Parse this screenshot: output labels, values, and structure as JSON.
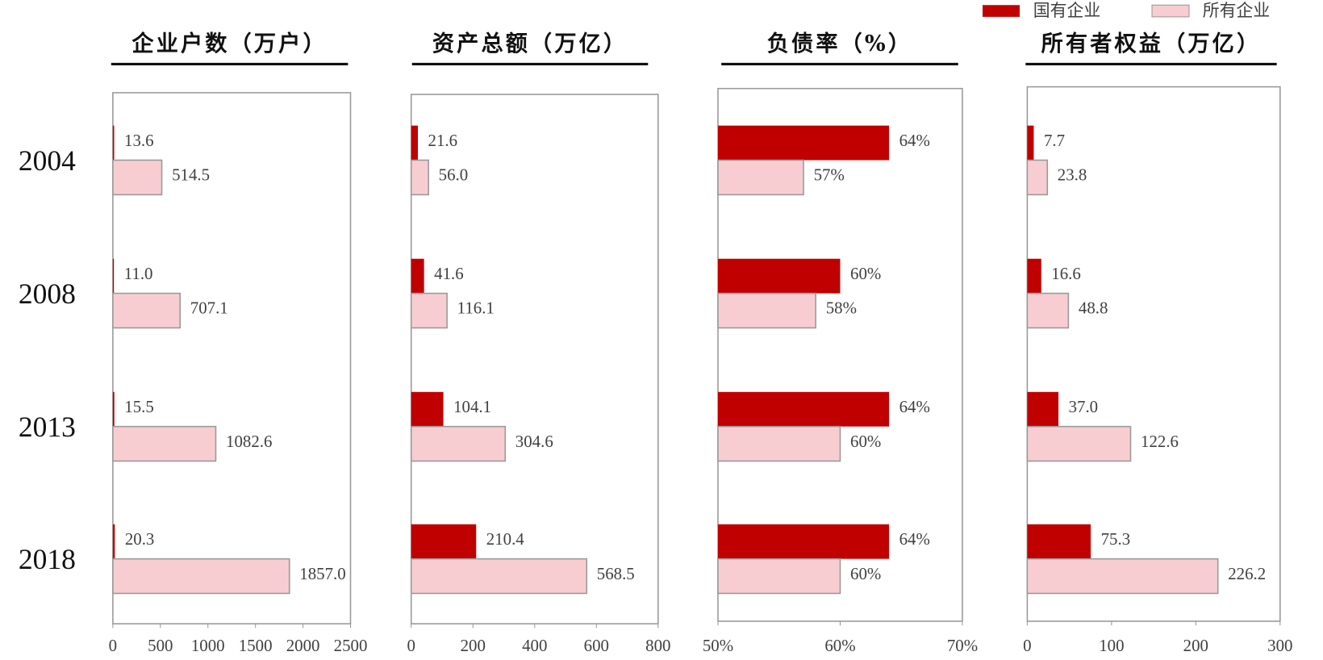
{
  "chart_data": [
    {
      "type": "bar",
      "title": "企业户数（万户）",
      "categories": [
        "2004",
        "2008",
        "2013",
        "2018"
      ],
      "series": [
        {
          "name": "国有企业",
          "color": "#c00000",
          "values": [
            13.6,
            11.0,
            15.5,
            20.3
          ],
          "value_labels": [
            "13.6",
            "11.0",
            "15.5",
            "20.3"
          ]
        },
        {
          "name": "所有企业",
          "color": "#f8cdd2",
          "values": [
            514.5,
            707.1,
            1082.6,
            1857.0
          ],
          "value_labels": [
            "514.5",
            "707.1",
            "1082.6",
            "1857.0"
          ]
        }
      ],
      "xlim": [
        0,
        2500
      ],
      "xticks": [
        0,
        500,
        1000,
        1500,
        2000,
        2500
      ]
    },
    {
      "type": "bar",
      "title": "资产总额（万亿）",
      "series": [
        {
          "color": "#c00000",
          "values": [
            21.6,
            41.6,
            104.1,
            210.4
          ],
          "value_labels": [
            "21.6",
            "41.6",
            "104.1",
            "210.4"
          ]
        },
        {
          "color": "#f8cdd2",
          "values": [
            56.0,
            116.1,
            304.6,
            568.5
          ],
          "value_labels": [
            "56.0",
            "116.1",
            "304.6",
            "568.5"
          ]
        }
      ],
      "xlim": [
        0,
        800
      ],
      "xticks": [
        0,
        200,
        400,
        600,
        800
      ]
    },
    {
      "type": "bar",
      "title": "负债率（%）",
      "series": [
        {
          "color": "#c00000",
          "values": [
            64,
            60,
            64,
            64
          ],
          "value_labels": [
            "64%",
            "60%",
            "64%",
            "64%"
          ]
        },
        {
          "color": "#f8cdd2",
          "values": [
            57,
            58,
            60,
            60
          ],
          "value_labels": [
            "57%",
            "58%",
            "60%",
            "60%"
          ]
        }
      ],
      "xlim": [
        50,
        70
      ],
      "xticks": [
        {
          "value": 50,
          "label": "50%"
        },
        {
          "value": 60,
          "label": "60%"
        },
        {
          "value": 70,
          "label": "70%"
        }
      ]
    },
    {
      "type": "bar",
      "title": "所有者权益（万亿）",
      "series": [
        {
          "color": "#c00000",
          "values": [
            7.7,
            16.6,
            37.0,
            75.3
          ],
          "value_labels": [
            "7.7",
            "16.6",
            "37.0",
            "75.3"
          ]
        },
        {
          "color": "#f8cdd2",
          "values": [
            23.8,
            48.8,
            122.6,
            226.2
          ],
          "value_labels": [
            "23.8",
            "48.8",
            "122.6",
            "226.2"
          ]
        }
      ],
      "xlim": [
        0,
        300
      ],
      "xticks": [
        0,
        100,
        200,
        300
      ]
    }
  ]
}
